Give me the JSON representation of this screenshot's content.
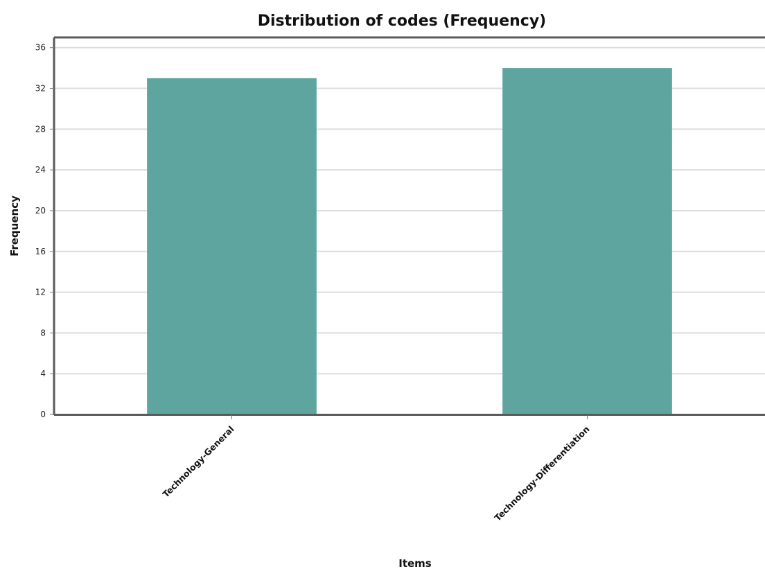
{
  "chart_data": {
    "type": "bar",
    "title": "Distribution of codes (Frequency)",
    "xlabel": "Items",
    "ylabel": "Frequency",
    "categories": [
      "Technology-General",
      "Technology-Differentiation"
    ],
    "values": [
      33,
      34
    ],
    "ylim": [
      0,
      37
    ],
    "yticks": [
      0,
      4,
      8,
      12,
      16,
      20,
      24,
      28,
      32,
      36
    ],
    "grid": true,
    "bar_color": "#5ea5a0"
  }
}
